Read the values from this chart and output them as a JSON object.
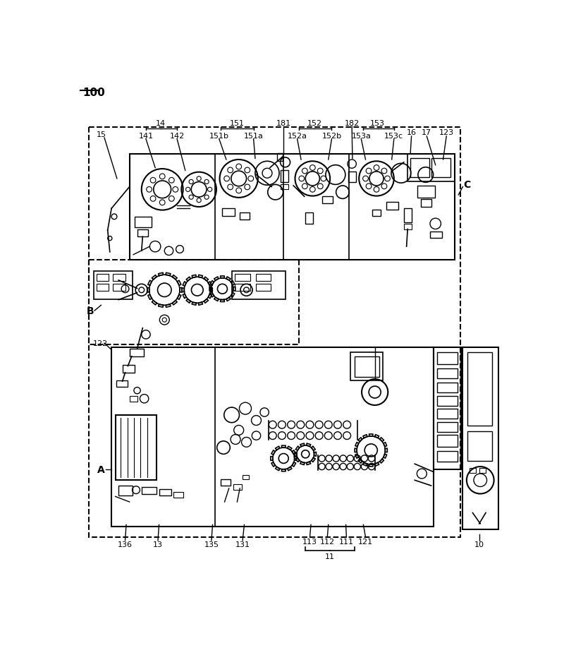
{
  "figure_label": "100",
  "background_color": "#ffffff",
  "line_color": "#000000",
  "top_labels": [
    "15",
    "14",
    "141",
    "142",
    "151",
    "151b",
    "151a",
    "181",
    "152",
    "152a",
    "152b",
    "182",
    "153",
    "153a",
    "153c",
    "16",
    "17",
    "123"
  ],
  "left_labels": [
    "B",
    "122",
    "A"
  ],
  "right_label": "C",
  "bottom_labels": [
    "136",
    "13",
    "135",
    "131",
    "113",
    "112",
    "111",
    "121",
    "11",
    "10"
  ]
}
